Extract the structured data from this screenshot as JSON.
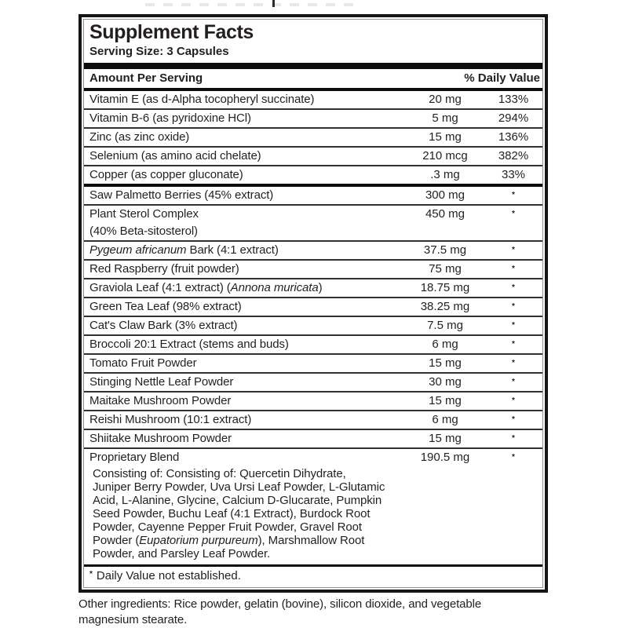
{
  "colors": {
    "text": "#231f20",
    "border": "#161616",
    "divider": "#0c0c0c"
  },
  "panel": {
    "title": "Supplement Facts",
    "serving_size": "Serving Size: 3 Capsules",
    "columns": {
      "amount_header": "Amount Per Serving",
      "dv_header": "% Daily Value"
    },
    "nutrient_rows": [
      {
        "name": [
          {
            "t": "Vitamin E (as d-Alpha tocopheryl succinate)"
          }
        ],
        "amount": "20 mg",
        "dv": "133%"
      },
      {
        "name": [
          {
            "t": "Vitamin B-6 (as pyridoxine HCl)"
          }
        ],
        "amount": "5 mg",
        "dv": "294%"
      },
      {
        "name": [
          {
            "t": "Zinc (as zinc oxide)"
          }
        ],
        "amount": "15 mg",
        "dv": "136%"
      },
      {
        "name": [
          {
            "t": "Selenium (as amino acid chelate)"
          }
        ],
        "amount": "210 mcg",
        "dv": "382%"
      },
      {
        "name": [
          {
            "t": "Copper (as copper gluconate)"
          }
        ],
        "amount": ".3 mg",
        "dv": "33%"
      }
    ],
    "ingredient_rows": [
      {
        "name": [
          {
            "t": "Saw Palmetto Berries (45% extract)"
          }
        ],
        "amount": "300 mg",
        "dv": "*"
      },
      {
        "name": [
          {
            "t": "Plant Sterol Complex"
          },
          {
            "br": true
          },
          {
            "t": " (40% Beta-sitosterol)"
          }
        ],
        "amount": "450 mg",
        "dv": "*"
      },
      {
        "name": [
          {
            "t": "Pygeum africanum",
            "i": true
          },
          {
            "t": " Bark (4:1 extract)"
          }
        ],
        "amount": "37.5 mg",
        "dv": "*"
      },
      {
        "name": [
          {
            "t": "Red Raspberry (fruit powder)"
          }
        ],
        "amount": "75 mg",
        "dv": "*"
      },
      {
        "name": [
          {
            "t": "Graviola Leaf (4:1 extract) ("
          },
          {
            "t": "Annona muricata",
            "i": true
          },
          {
            "t": ")"
          }
        ],
        "amount": "18.75 mg",
        "dv": "*"
      },
      {
        "name": [
          {
            "t": "Green Tea Leaf (98% extract)"
          }
        ],
        "amount": "38.25 mg",
        "dv": "*"
      },
      {
        "name": [
          {
            "t": "Cat's Claw Bark (3% extract)"
          }
        ],
        "amount": "7.5 mg",
        "dv": "*"
      },
      {
        "name": [
          {
            "t": "Broccoli 20:1 Extract (stems and buds)"
          }
        ],
        "amount": "6 mg",
        "dv": "*"
      },
      {
        "name": [
          {
            "t": "Tomato Fruit Powder"
          }
        ],
        "amount": "15 mg",
        "dv": "*"
      },
      {
        "name": [
          {
            "t": "Stinging Nettle Leaf Powder"
          }
        ],
        "amount": "30 mg",
        "dv": "*"
      },
      {
        "name": [
          {
            "t": "Maitake Mushroom Powder"
          }
        ],
        "amount": "15 mg",
        "dv": "*"
      },
      {
        "name": [
          {
            "t": "Reishi Mushroom (10:1 extract)"
          }
        ],
        "amount": "6 mg",
        "dv": "*"
      },
      {
        "name": [
          {
            "t": "Shiitake Mushroom Powder"
          }
        ],
        "amount": "15 mg",
        "dv": "*"
      },
      {
        "name": [
          {
            "t": "Proprietary Blend"
          }
        ],
        "amount": "190.5 mg",
        "dv": "*",
        "desc_lines": [
          [
            {
              "t": "Consisting of: Consisting of: Quercetin Dihydrate,"
            }
          ],
          [
            {
              "t": "Juniper Berry Powder, Uva Ursi Leaf Powder, L-Glutamic"
            }
          ],
          [
            {
              "t": "Acid, L-Alanine, Glycine, Calcium D-Glucarate, Pumpkin"
            }
          ],
          [
            {
              "t": "Seed Powder, Buchu Leaf (4:1 Extract), Burdock Root"
            }
          ],
          [
            {
              "t": "Powder, Cayenne Pepper Fruit Powder, Gravel Root"
            }
          ],
          [
            {
              "t": "Powder ("
            },
            {
              "t": "Eupatorium purpureum",
              "i": true
            },
            {
              "t": "), Marshmallow Root"
            }
          ],
          [
            {
              "t": "Powder, and Parsley Leaf Powder."
            }
          ]
        ]
      }
    ],
    "footnote": {
      "marker": "*",
      "text": "Daily Value not established."
    }
  },
  "other_ingredients_lines": [
    "Other ingredients: Rice powder, gelatin (bovine), silicon dioxide, and vegetable",
    "magnesium stearate."
  ]
}
